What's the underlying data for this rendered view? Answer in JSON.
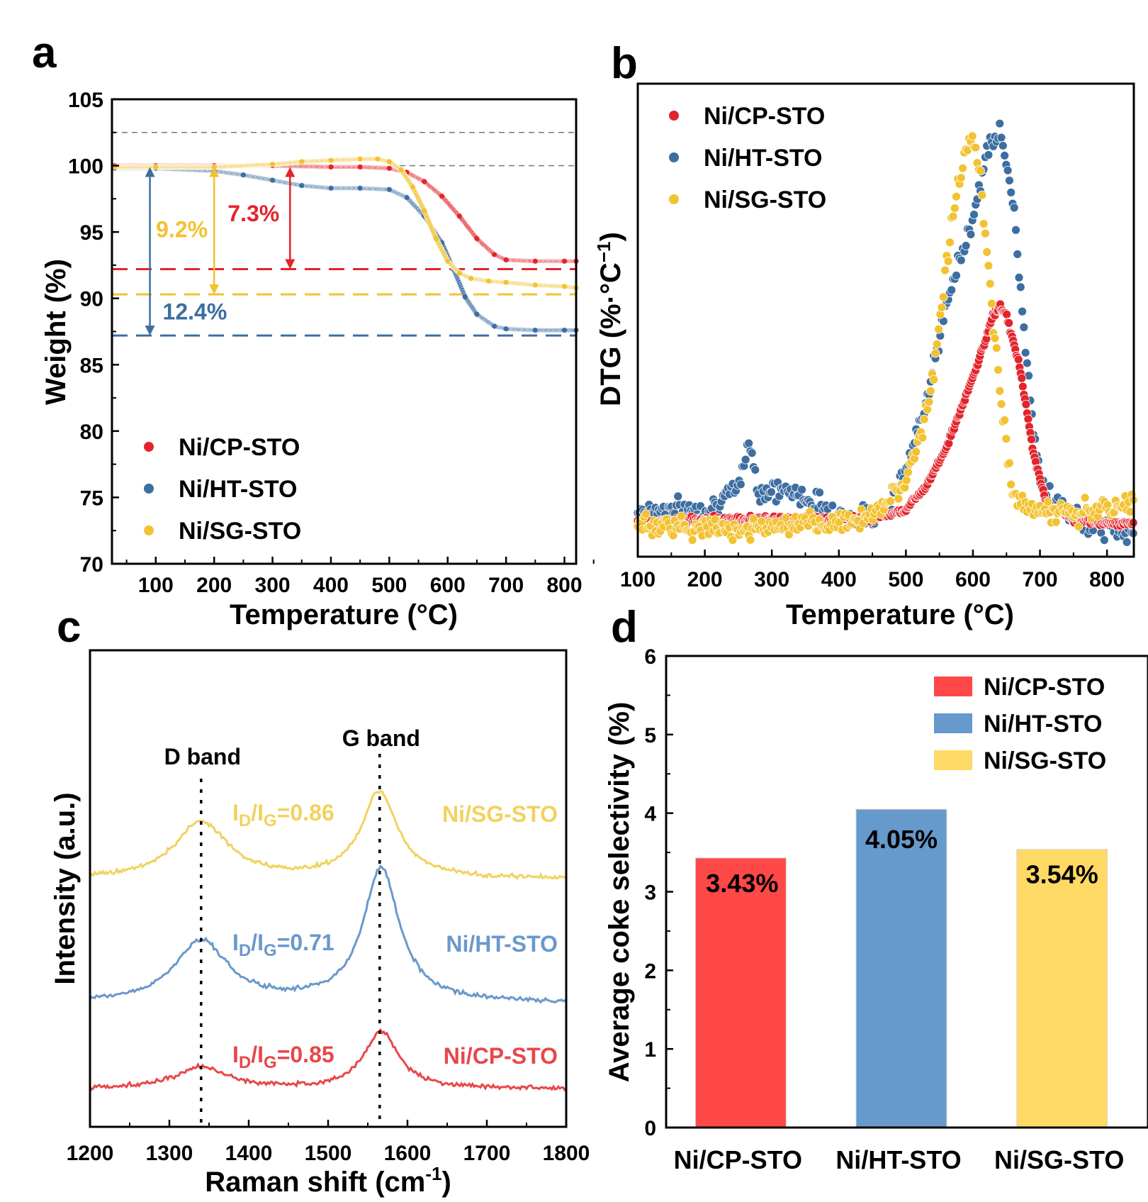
{
  "panels": {
    "a": {
      "letter": "a"
    },
    "b": {
      "letter": "b"
    },
    "c": {
      "letter": "c"
    },
    "d": {
      "letter": "d"
    }
  },
  "colors": {
    "cp": "#e3242b",
    "ht": "#3e6ea1",
    "sg": "#f2c231",
    "cp_raman": "#e8474a",
    "ht_raman": "#6a98cb",
    "sg_raman": "#f2d25e",
    "cp_bar": "#ff4848",
    "ht_bar": "#6699cc",
    "sg_bar": "#ffd966"
  },
  "chart_data": [
    {
      "id": "a",
      "type": "scatter",
      "title": "",
      "xlabel": "Temperature (°C)",
      "ylabel": "Weight (%)",
      "xlim": [
        25,
        820
      ],
      "ylim": [
        70,
        105
      ],
      "xticks": [
        100,
        200,
        300,
        400,
        500,
        600,
        700,
        800
      ],
      "yticks": [
        70,
        75,
        80,
        85,
        90,
        95,
        100,
        105
      ],
      "legend": [
        "Ni/CP-STO",
        "Ni/HT-STO",
        "Ni/SG-STO"
      ],
      "series": [
        {
          "name": "Ni/CP-STO",
          "color_key": "cp",
          "x": [
            30,
            100,
            200,
            300,
            400,
            450,
            500,
            530,
            560,
            590,
            620,
            650,
            680,
            700,
            750,
            800,
            820
          ],
          "y": [
            100.0,
            100.0,
            100.0,
            100.0,
            99.9,
            99.9,
            99.8,
            99.5,
            98.8,
            97.7,
            96.2,
            94.5,
            93.3,
            92.9,
            92.8,
            92.8,
            92.8
          ]
        },
        {
          "name": "Ni/HT-STO",
          "color_key": "ht",
          "x": [
            30,
            100,
            200,
            250,
            300,
            350,
            400,
            450,
            500,
            530,
            560,
            590,
            610,
            630,
            650,
            680,
            700,
            750,
            800,
            820
          ],
          "y": [
            99.8,
            99.8,
            99.6,
            99.3,
            98.9,
            98.5,
            98.3,
            98.3,
            98.2,
            97.6,
            96.2,
            94.2,
            92.2,
            90.1,
            88.8,
            87.9,
            87.7,
            87.6,
            87.6,
            87.6
          ]
        },
        {
          "name": "Ni/SG-STO",
          "color_key": "sg",
          "x": [
            30,
            100,
            200,
            300,
            350,
            400,
            450,
            480,
            500,
            520,
            540,
            560,
            580,
            600,
            620,
            640,
            670,
            700,
            750,
            800,
            820
          ],
          "y": [
            99.9,
            99.9,
            99.9,
            100.1,
            100.3,
            100.4,
            100.5,
            100.5,
            100.3,
            99.7,
            98.4,
            96.6,
            94.5,
            92.8,
            91.9,
            91.5,
            91.3,
            91.2,
            91.0,
            90.9,
            90.8
          ]
        }
      ],
      "reference_lines": [
        {
          "y": 102.5,
          "color_key": "grey"
        },
        {
          "y": 100.0,
          "color_key": "grey"
        },
        {
          "y": 92.2,
          "color_key": "cp"
        },
        {
          "y": 90.3,
          "color_key": "sg"
        },
        {
          "y": 87.2,
          "color_key": "ht"
        }
      ],
      "annotations": [
        {
          "text": "7.3%",
          "color_key": "cp",
          "arrow_x": 330,
          "from": 99.9,
          "to": 92.2
        },
        {
          "text": "9.2%",
          "color_key": "sg",
          "arrow_x": 200,
          "from": 99.9,
          "to": 90.3
        },
        {
          "text": "12.4%",
          "color_key": "ht",
          "arrow_x": 90,
          "from": 99.9,
          "to": 87.2
        }
      ]
    },
    {
      "id": "b",
      "type": "scatter",
      "title": "",
      "xlabel": "Temperature (°C)",
      "ylabel": "DTG (%·°C",
      "ylabel_sup": "−1",
      "ylabel_close": ")",
      "xlim": [
        100,
        840
      ],
      "ylim": [
        0,
        100
      ],
      "xticks": [
        100,
        200,
        300,
        400,
        500,
        600,
        700,
        800
      ],
      "yticks": [],
      "legend": [
        "Ni/CP-STO",
        "Ni/HT-STO",
        "Ni/SG-STO"
      ],
      "series": [
        {
          "name": "Ni/CP-STO",
          "color_key": "cp",
          "x": [
            100,
            200,
            300,
            400,
            450,
            500,
            530,
            560,
            590,
            610,
            630,
            640,
            650,
            670,
            690,
            710,
            750,
            800,
            840
          ],
          "y": [
            7,
            8,
            8,
            8,
            8,
            10,
            15,
            23,
            34,
            42,
            51,
            53,
            51,
            40,
            22,
            11,
            8,
            7,
            7
          ]
        },
        {
          "name": "Ni/HT-STO",
          "color_key": "ht",
          "x": [
            100,
            150,
            200,
            250,
            265,
            280,
            320,
            360,
            400,
            450,
            480,
            510,
            540,
            570,
            600,
            620,
            640,
            660,
            680,
            700,
            750,
            800,
            840
          ],
          "y": [
            10,
            10,
            10,
            14,
            25,
            14,
            14,
            12,
            9,
            8,
            12,
            22,
            40,
            58,
            72,
            85,
            90,
            75,
            42,
            15,
            8,
            6,
            5
          ]
        },
        {
          "name": "Ni/SG-STO",
          "color_key": "sg",
          "x": [
            100,
            200,
            300,
            400,
            450,
            500,
            530,
            550,
            570,
            590,
            600,
            610,
            620,
            630,
            640,
            660,
            680,
            700,
            750,
            800,
            840
          ],
          "y": [
            7,
            6,
            6,
            7,
            9,
            16,
            30,
            48,
            72,
            87,
            89,
            82,
            65,
            50,
            35,
            13,
            11,
            10,
            9,
            10,
            11
          ]
        }
      ]
    },
    {
      "id": "c",
      "type": "line",
      "title": "",
      "xlabel": "Raman shift (cm",
      "xlabel_sup": "-1",
      "xlabel_close": ")",
      "ylabel": "Intensity (a.u.)",
      "xlim": [
        1200,
        1800
      ],
      "ylim": [
        0,
        100
      ],
      "xticks": [
        1200,
        1300,
        1400,
        1500,
        1600,
        1700,
        1800
      ],
      "yticks": [],
      "band_markers": [
        {
          "x": 1340,
          "label": "D band"
        },
        {
          "x": 1565,
          "label": "G band"
        }
      ],
      "series": [
        {
          "name": "Ni/CP-STO",
          "color_key": "cp_raman",
          "baseline": 8,
          "peaks": [
            {
              "x": 1340,
              "h": 4.5,
              "w": 38
            },
            {
              "x": 1567,
              "h": 12,
              "w": 26
            }
          ],
          "ratio_label": {
            "I": "I",
            "sub1": "D",
            "mid": "/I",
            "sub2": "G",
            "value": "=0.85"
          }
        },
        {
          "name": "Ni/HT-STO",
          "color_key": "ht_raman",
          "baseline": 26,
          "peaks": [
            {
              "x": 1340,
              "h": 13,
              "w": 40
            },
            {
              "x": 1567,
              "h": 28,
              "w": 28
            }
          ],
          "ratio_label": {
            "I": "I",
            "sub1": "D",
            "mid": "/I",
            "sub2": "G",
            "value": "=0.71"
          }
        },
        {
          "name": "Ni/SG-STO",
          "color_key": "sg_raman",
          "baseline": 52,
          "peaks": [
            {
              "x": 1340,
              "h": 12,
              "w": 40
            },
            {
              "x": 1565,
              "h": 18,
              "w": 28
            }
          ],
          "ratio_label": {
            "I": "I",
            "sub1": "D",
            "mid": "/I",
            "sub2": "G",
            "value": "=0.86"
          }
        }
      ]
    },
    {
      "id": "d",
      "type": "bar",
      "title": "",
      "xlabel": "",
      "ylabel": "Average coke selectivity (%)",
      "ylim": [
        0,
        6
      ],
      "yticks": [
        0,
        1,
        2,
        3,
        4,
        5,
        6
      ],
      "categories": [
        "Ni/CP-STO",
        "Ni/HT-STO",
        "Ni/SG-STO"
      ],
      "values": [
        3.43,
        4.05,
        3.54
      ],
      "value_labels": [
        "3.43%",
        "4.05%",
        "3.54%"
      ],
      "legend": [
        "Ni/CP-STO",
        "Ni/HT-STO",
        "Ni/SG-STO"
      ]
    }
  ]
}
